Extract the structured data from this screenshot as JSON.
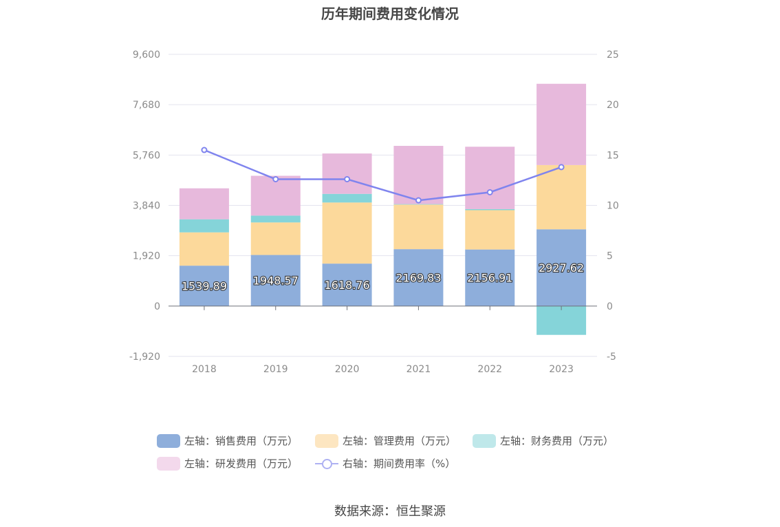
{
  "title": "历年期间费用变化情况",
  "source": "数据来源：恒生聚源",
  "chart_data": {
    "type": "bar",
    "stacked": true,
    "categories": [
      "2018",
      "2019",
      "2020",
      "2021",
      "2022",
      "2023"
    ],
    "series": [
      {
        "name": "左轴：销售费用（万元）",
        "axis": "left",
        "color": "#8eaedb",
        "values": [
          1539.89,
          1948.57,
          1618.76,
          2169.83,
          2156.91,
          2927.62
        ],
        "labels": [
          "1539.89",
          "1948.57",
          "1618.76",
          "2169.83",
          "2156.91",
          "2927.62"
        ]
      },
      {
        "name": "左轴：管理费用（万元）",
        "axis": "left",
        "color": "#fcd99b",
        "legend_color": "#fde6c1",
        "values": [
          1270,
          1240,
          2330,
          1700,
          1500,
          2450
        ]
      },
      {
        "name": "左轴：财务费用（万元）",
        "axis": "left",
        "color": "#85d4d9",
        "legend_color": "#bfe8ea",
        "values": [
          500,
          260,
          330,
          20,
          40,
          -1100
        ]
      },
      {
        "name": "左轴：研发费用（万元）",
        "axis": "left",
        "color": "#e7b9dc",
        "legend_color": "#f3d9ec",
        "values": [
          1180,
          1520,
          1540,
          2220,
          2380,
          3100
        ]
      },
      {
        "name": "右轴：期间费用率（%）",
        "axis": "right",
        "type": "line",
        "color": "#7f84ee",
        "legend_color": "#aeb1f2",
        "values": [
          15.5,
          12.6,
          12.6,
          10.5,
          11.3,
          13.8
        ]
      }
    ],
    "left_axis": {
      "min": -1920,
      "max": 9600,
      "ticks": [
        "9,600",
        "7,680",
        "5,760",
        "3,840",
        "1,920",
        "0",
        "-1,920"
      ],
      "tick_values": [
        9600,
        7680,
        5760,
        3840,
        1920,
        0,
        -1920
      ]
    },
    "right_axis": {
      "min": -5,
      "max": 25,
      "ticks": [
        "25",
        "20",
        "15",
        "10",
        "5",
        "0",
        "-5"
      ],
      "tick_values": [
        25,
        20,
        15,
        10,
        5,
        0,
        -5
      ]
    },
    "legend_position": "bottom"
  }
}
